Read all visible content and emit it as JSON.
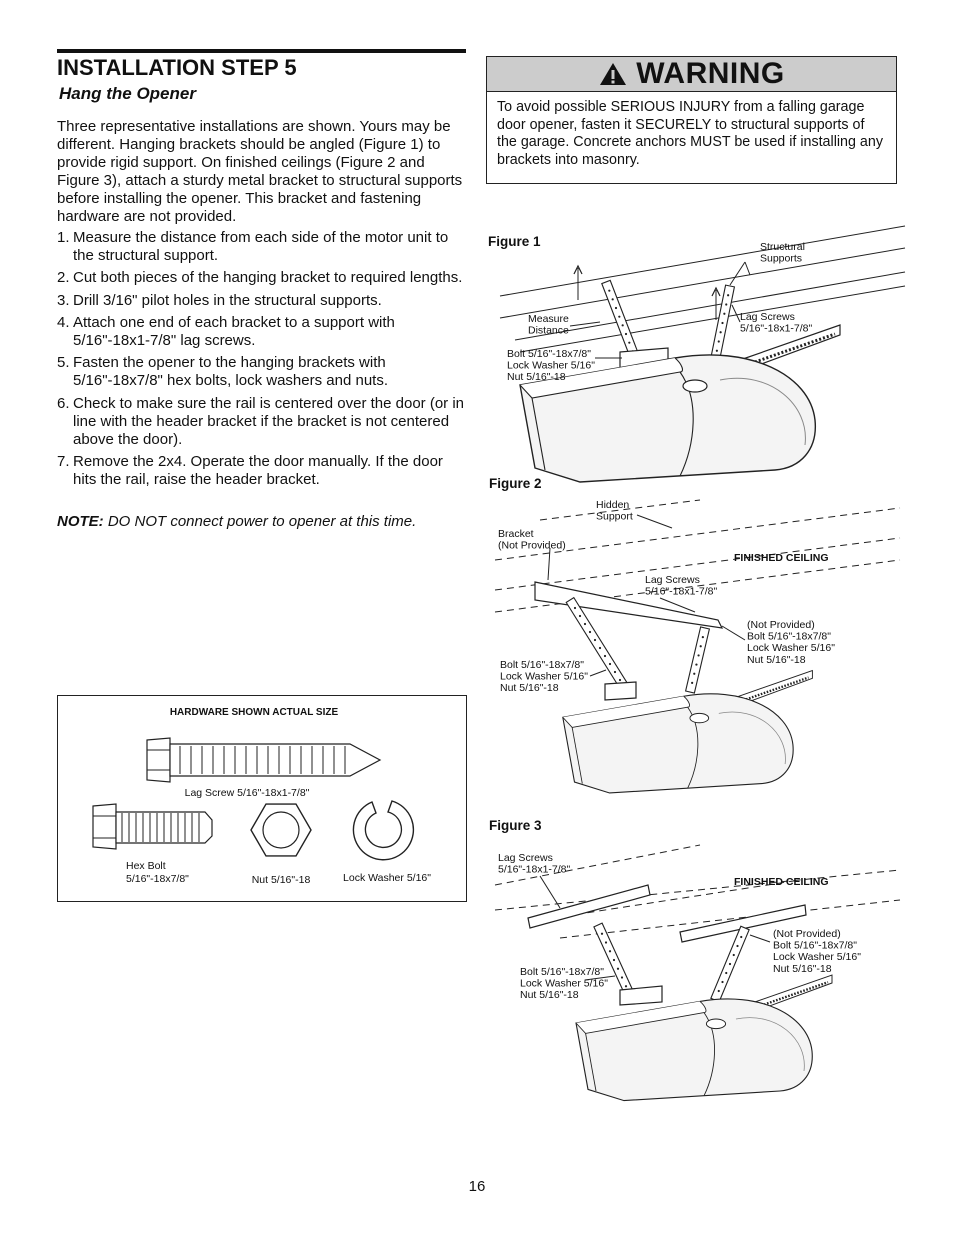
{
  "header": {
    "title": "INSTALLATION STEP 5",
    "subtitle": "Hang the Opener"
  },
  "intro": "Three representative installations are shown. Yours may be different. Hanging brackets should be angled (Figure 1) to provide rigid support. On finished ceilings (Figure 2 and Figure 3), attach a sturdy metal bracket to structural supports before installing the opener. This bracket and fastening hardware are not provided.",
  "steps": [
    {
      "num": "1.",
      "text": "Measure the distance from each side of the motor unit to the structural support."
    },
    {
      "num": "2.",
      "text": "Cut both pieces of the hanging bracket to required lengths."
    },
    {
      "num": "3.",
      "text": "Drill 3/16\" pilot holes in the structural supports."
    },
    {
      "num": "4.",
      "text": "Attach one end of each bracket to a support with 5/16\"-18x1-7/8\" lag screws."
    },
    {
      "num": "5.",
      "text": "Fasten the opener to the hanging brackets with 5/16\"-18x7/8\" hex bolts, lock washers and nuts."
    },
    {
      "num": "6.",
      "text": "Check to make sure the rail is centered over the door (or in line with the header bracket if the bracket is not centered above the door)."
    },
    {
      "num": "7.",
      "text": "Remove the 2x4. Operate the door manually. If the door hits the rail, raise the header bracket."
    }
  ],
  "note": {
    "label": "NOTE:",
    "text": "DO NOT connect power to opener at this time."
  },
  "warning": {
    "title": "WARNING",
    "text": "To avoid possible SERIOUS INJURY from a falling garage door opener, fasten it SECURELY to structural supports of the garage. Concrete anchors MUST be used if installing any brackets into masonry."
  },
  "figures": [
    {
      "label": "Figure 1",
      "callouts": [
        [
          "Structural",
          "Supports"
        ],
        [
          "Measure",
          "Distance"
        ],
        [
          "Lag Screws",
          "5/16\"-18x1-7/8\""
        ],
        [
          "Bolt 5/16\"-18x7/8\"",
          "Lock Washer 5/16\"",
          "Nut 5/16\"-18"
        ]
      ]
    },
    {
      "label": "Figure 2",
      "ceiling_label": "FINISHED CEILING",
      "callouts": [
        [
          "Hidden",
          "Support"
        ],
        [
          "Bracket",
          "(Not Provided)"
        ],
        [
          "Lag Screws",
          "5/16\"-18x1-7/8\""
        ],
        [
          "(Not Provided)",
          "Bolt 5/16\"-18x7/8\"",
          "Lock Washer 5/16\"",
          "Nut 5/16\"-18"
        ],
        [
          "Bolt 5/16\"-18x7/8\"",
          "Lock Washer 5/16\"",
          "Nut 5/16\"-18"
        ]
      ]
    },
    {
      "label": "Figure 3",
      "ceiling_label": "FINISHED CEILING",
      "callouts": [
        [
          "Lag Screws",
          "5/16\"-18x1-7/8\""
        ],
        [
          "(Not Provided)",
          "Bolt 5/16\"-18x7/8\"",
          "Lock Washer 5/16\"",
          "Nut 5/16\"-18"
        ],
        [
          "Bolt 5/16\"-18x7/8\"",
          "Lock Washer 5/16\"",
          "Nut 5/16\"-18"
        ]
      ]
    }
  ],
  "hardware": {
    "title": "HARDWARE SHOWN ACTUAL SIZE",
    "lag_screw": "Lag Screw 5/16\"-18x1-7/8\"",
    "hex_bolt": [
      "Hex Bolt",
      "5/16\"-18x7/8\""
    ],
    "nut": "Nut 5/16\"-18",
    "lock_washer": "Lock Washer 5/16\""
  },
  "page_number": "16"
}
